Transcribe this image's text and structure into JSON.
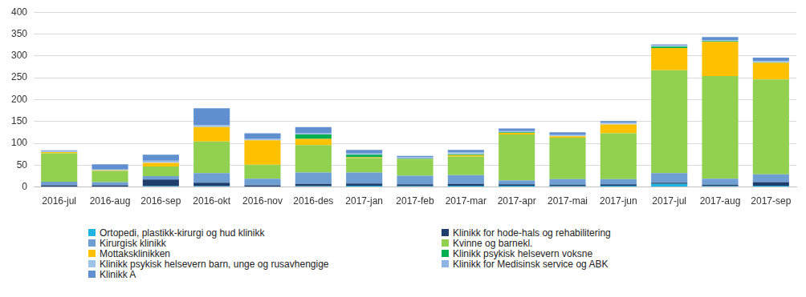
{
  "chart_data": {
    "type": "bar",
    "stacked": true,
    "grid": true,
    "legend": "bottom",
    "categories": [
      "2016-jul",
      "2016-aug",
      "2016-sep",
      "2016-okt",
      "2016-nov",
      "2016-des",
      "2017-jan",
      "2017-feb",
      "2017-mar",
      "2017-apr",
      "2017-mai",
      "2017-jun",
      "2017-jul",
      "2017-aug",
      "2017-sep"
    ],
    "ylim": [
      0,
      400
    ],
    "yticks": [
      0,
      50,
      100,
      150,
      200,
      250,
      300,
      350,
      400
    ],
    "series": [
      {
        "name": "Ortopedi, plastikk-kirurgi og hud klinikk",
        "color": "#1fb5e0",
        "values": [
          1,
          1,
          2,
          2,
          1,
          2,
          3,
          2,
          3,
          3,
          2,
          3,
          7,
          2,
          3
        ]
      },
      {
        "name": "Klinikk for hode-hals og rehabilitering",
        "color": "#1f3e6e",
        "values": [
          3,
          3,
          15,
          8,
          3,
          5,
          5,
          4,
          4,
          3,
          3,
          3,
          3,
          3,
          8
        ]
      },
      {
        "name": "Kirurgisk klinikk",
        "color": "#6f9fd2",
        "values": [
          8,
          7,
          8,
          22,
          15,
          26,
          25,
          20,
          20,
          9,
          13,
          12,
          22,
          14,
          18
        ]
      },
      {
        "name": "Kvinne og barnekl.",
        "color": "#92d050",
        "values": [
          65,
          26,
          22,
          72,
          32,
          63,
          33,
          37,
          43,
          105,
          95,
          105,
          235,
          235,
          217
        ]
      },
      {
        "name": "Mottaksklinikken",
        "color": "#ffc000",
        "values": [
          3,
          1,
          8,
          33,
          56,
          14,
          2,
          1,
          3,
          4,
          3,
          20,
          51,
          78,
          38
        ]
      },
      {
        "name": "Klinikk psykisk helsevern voksne",
        "color": "#00b050",
        "values": [
          0,
          0,
          0,
          0,
          0,
          10,
          6,
          1,
          2,
          1,
          0,
          0,
          3,
          2,
          1
        ]
      },
      {
        "name": "Klinikk psykisk helsevern barn, unge og rusavhengige",
        "color": "#9dc3e6",
        "values": [
          1,
          1,
          2,
          2,
          2,
          2,
          2,
          2,
          2,
          1,
          2,
          2,
          1,
          1,
          1
        ]
      },
      {
        "name": "Klinikk for Medisinsk service og ABK",
        "color": "#8eb4e3",
        "values": [
          1,
          1,
          3,
          2,
          1,
          1,
          2,
          1,
          2,
          2,
          2,
          2,
          2,
          1,
          2
        ]
      },
      {
        "name": "Klinikk A",
        "color": "#5f8fcf",
        "values": [
          2,
          12,
          14,
          39,
          13,
          14,
          7,
          3,
          6,
          6,
          5,
          4,
          2,
          7,
          8
        ]
      }
    ]
  }
}
